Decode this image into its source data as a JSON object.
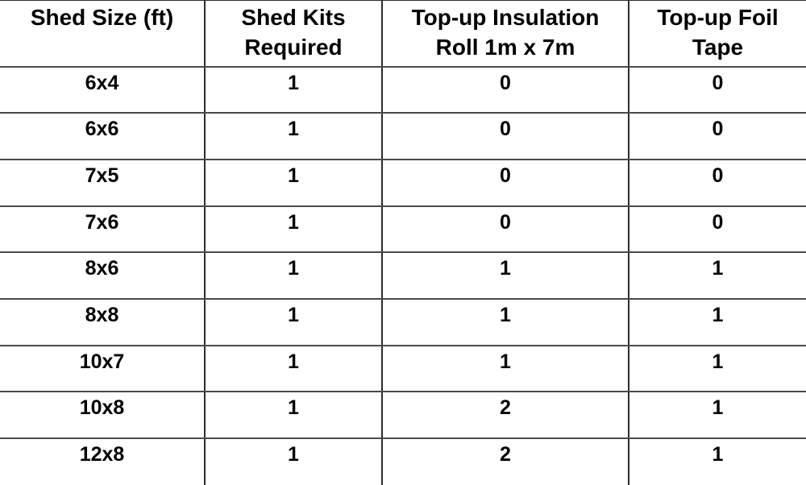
{
  "colors": {
    "background": "#ffffff",
    "text": "#000000",
    "border_horizontal": "#4a4a4a",
    "border_vertical": "#2d2d2d"
  },
  "chart_data": {
    "type": "table",
    "columns": [
      "Shed Size (ft)",
      "Shed Kits Required",
      "Top-up Insulation Roll 1m x 7m",
      "Top-up Foil Tape"
    ],
    "header_lines": [
      [
        "Shed Size (ft)"
      ],
      [
        "Shed Kits",
        "Required"
      ],
      [
        "Top-up Insulation",
        "Roll 1m x 7m"
      ],
      [
        "Top-up Foil",
        "Tape"
      ]
    ],
    "rows": [
      [
        "6x4",
        1,
        0,
        0
      ],
      [
        "6x6",
        1,
        0,
        0
      ],
      [
        "7x5",
        1,
        0,
        0
      ],
      [
        "7x6",
        1,
        0,
        0
      ],
      [
        "8x6",
        1,
        1,
        1
      ],
      [
        "8x8",
        1,
        1,
        1
      ],
      [
        "10x7",
        1,
        1,
        1
      ],
      [
        "10x8",
        1,
        2,
        1
      ],
      [
        "12x8",
        1,
        2,
        1
      ]
    ]
  }
}
